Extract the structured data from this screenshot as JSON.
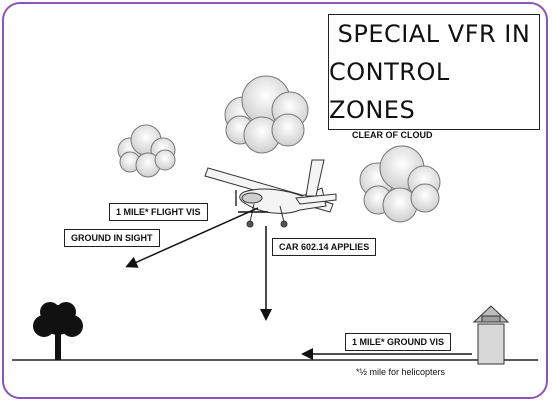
{
  "title": {
    "line1": "SPECIAL VFR IN",
    "line2": "CONTROL ZONES"
  },
  "labels": {
    "clear_of_cloud": "CLEAR OF CLOUD",
    "flight_vis": "1 MILE* FLIGHT VIS",
    "ground_in_sight": "GROUND IN SIGHT",
    "car_applies": "CAR 602.14 APPLIES",
    "ground_vis": "1 MILE* GROUND VIS"
  },
  "footnote": "*½ mile for helicopters",
  "colors": {
    "frame": "#8a55b8",
    "cloud_fill": "#e9e9e9",
    "ink": "#111111"
  }
}
